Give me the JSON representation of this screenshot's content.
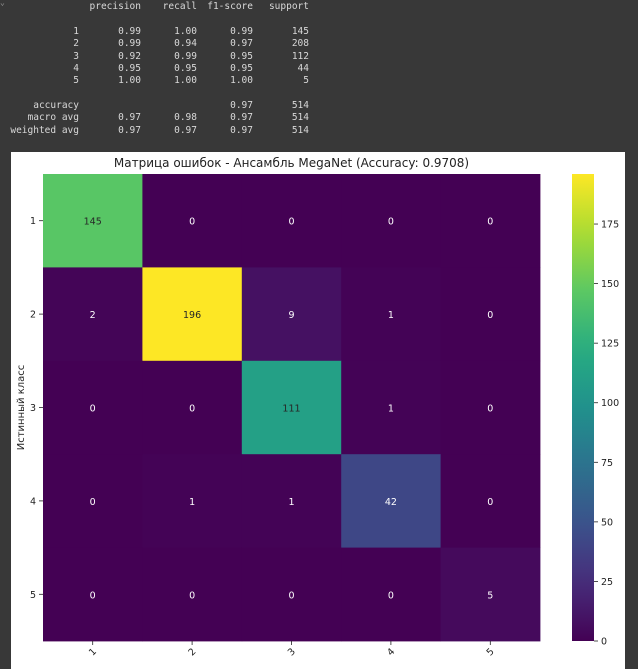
{
  "report": {
    "headers": [
      "precision",
      "recall",
      "f1-score",
      "support"
    ],
    "rows": [
      {
        "label": "1",
        "values": [
          "0.99",
          "1.00",
          "0.99",
          "145"
        ]
      },
      {
        "label": "2",
        "values": [
          "0.99",
          "0.94",
          "0.97",
          "208"
        ]
      },
      {
        "label": "3",
        "values": [
          "0.92",
          "0.99",
          "0.95",
          "112"
        ]
      },
      {
        "label": "4",
        "values": [
          "0.95",
          "0.95",
          "0.95",
          "44"
        ]
      },
      {
        "label": "5",
        "values": [
          "1.00",
          "1.00",
          "1.00",
          "5"
        ]
      }
    ],
    "summary": [
      {
        "label": "accuracy",
        "values": [
          "",
          "",
          "0.97",
          "514"
        ]
      },
      {
        "label": "macro avg",
        "values": [
          "0.97",
          "0.98",
          "0.97",
          "514"
        ]
      },
      {
        "label": "weighted avg",
        "values": [
          "0.97",
          "0.97",
          "0.97",
          "514"
        ]
      }
    ]
  },
  "chart_data": {
    "type": "heatmap",
    "title": "Матрица ошибок - Ансамбль MegaNet (Accuracy: 0.9708)",
    "ylabel": "Истинный класс",
    "xlabel": "",
    "x_categories": [
      "1",
      "2",
      "3",
      "4",
      "5"
    ],
    "y_categories": [
      "1",
      "2",
      "3",
      "4",
      "5"
    ],
    "matrix": [
      [
        145,
        0,
        0,
        0,
        0
      ],
      [
        2,
        196,
        9,
        1,
        0
      ],
      [
        0,
        0,
        111,
        1,
        0
      ],
      [
        0,
        1,
        1,
        42,
        0
      ],
      [
        0,
        0,
        0,
        0,
        5
      ]
    ],
    "colormap": "viridis",
    "vmin": 0,
    "vmax": 196,
    "colorbar_ticks": [
      0,
      25,
      50,
      75,
      100,
      125,
      150,
      175
    ],
    "annotation_colors": {
      "dark_cell": "#ffffff",
      "light_cell": "#262626"
    }
  }
}
